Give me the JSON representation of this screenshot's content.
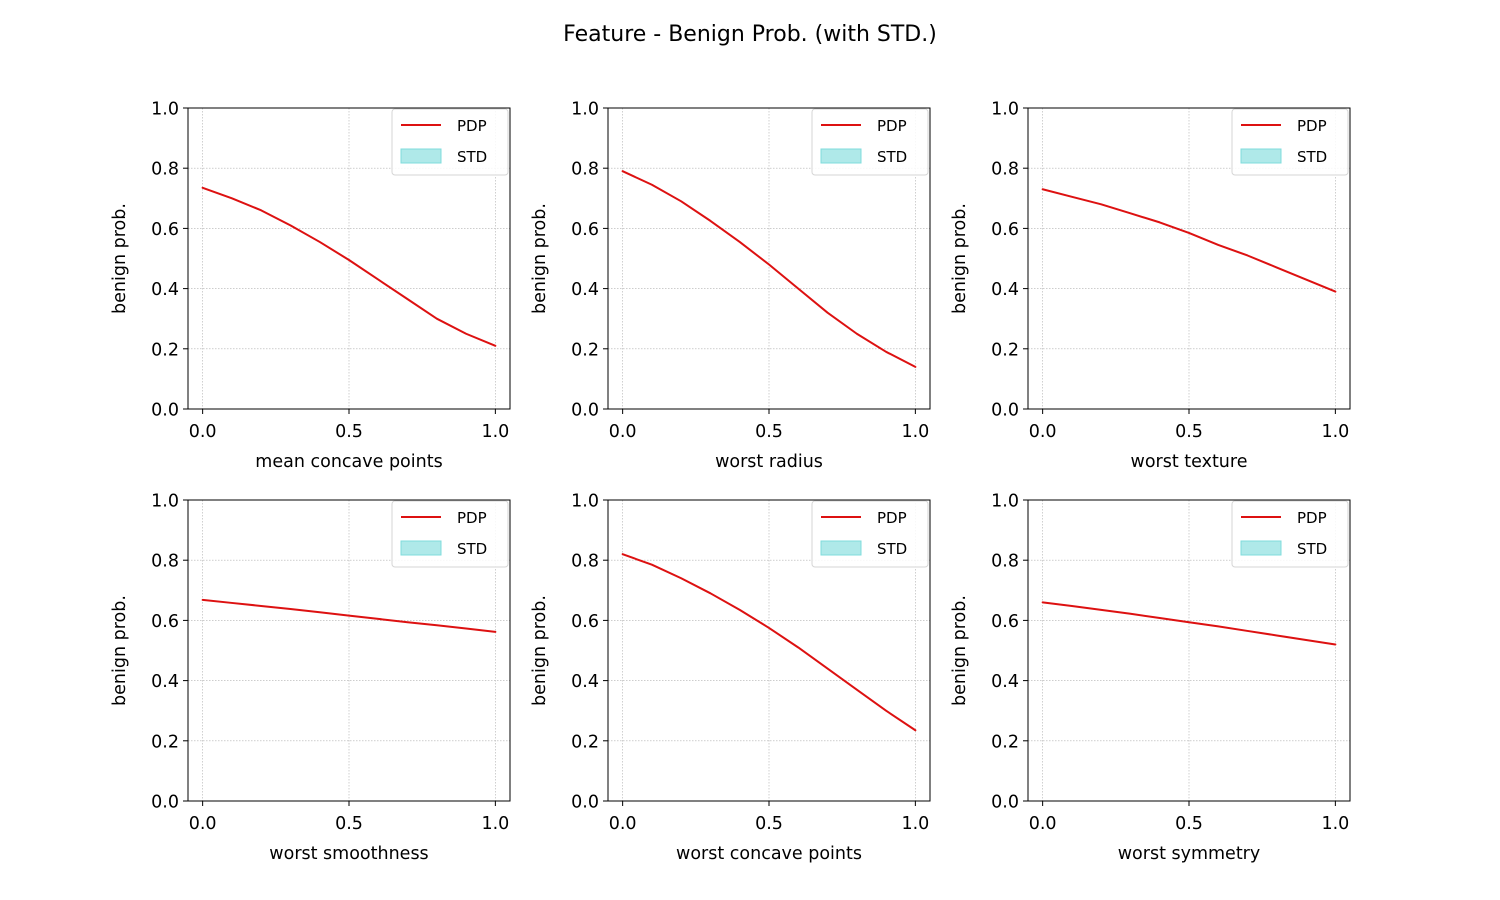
{
  "title": "Feature - Benign Prob. (with STD.)",
  "colors": {
    "pdp_line": "#dd1111",
    "std_fill": "#afe9e9",
    "std_edge": "#7fdcdc",
    "grid": "#b0b0b0",
    "axes": "#000000"
  },
  "chart_data": [
    {
      "type": "line",
      "xlabel": "mean concave points",
      "ylabel": "benign prob.",
      "xlim": [
        0.0,
        1.0
      ],
      "ylim": [
        0.0,
        1.0
      ],
      "xticks": [
        "0.0",
        "0.5",
        "1.0"
      ],
      "yticks": [
        "0.0",
        "0.2",
        "0.4",
        "0.6",
        "0.8",
        "1.0"
      ],
      "grid": true,
      "legend_position": "top-right",
      "legend": [
        "PDP",
        "STD"
      ],
      "x": [
        0.0,
        0.1,
        0.2,
        0.3,
        0.4,
        0.5,
        0.6,
        0.7,
        0.8,
        0.9,
        1.0
      ],
      "series": [
        {
          "name": "PDP",
          "values": [
            0.735,
            0.7,
            0.66,
            0.61,
            0.555,
            0.495,
            0.43,
            0.365,
            0.3,
            0.25,
            0.21
          ]
        }
      ]
    },
    {
      "type": "line",
      "xlabel": "worst radius",
      "ylabel": "benign prob.",
      "xlim": [
        0.0,
        1.0
      ],
      "ylim": [
        0.0,
        1.0
      ],
      "xticks": [
        "0.0",
        "0.5",
        "1.0"
      ],
      "yticks": [
        "0.0",
        "0.2",
        "0.4",
        "0.6",
        "0.8",
        "1.0"
      ],
      "grid": true,
      "legend_position": "top-right",
      "legend": [
        "PDP",
        "STD"
      ],
      "x": [
        0.0,
        0.1,
        0.2,
        0.3,
        0.4,
        0.5,
        0.6,
        0.7,
        0.8,
        0.9,
        1.0
      ],
      "series": [
        {
          "name": "PDP",
          "values": [
            0.79,
            0.745,
            0.69,
            0.625,
            0.555,
            0.48,
            0.4,
            0.32,
            0.25,
            0.19,
            0.14
          ]
        }
      ]
    },
    {
      "type": "line",
      "xlabel": "worst texture",
      "ylabel": "benign prob.",
      "xlim": [
        0.0,
        1.0
      ],
      "ylim": [
        0.0,
        1.0
      ],
      "xticks": [
        "0.0",
        "0.5",
        "1.0"
      ],
      "yticks": [
        "0.0",
        "0.2",
        "0.4",
        "0.6",
        "0.8",
        "1.0"
      ],
      "grid": true,
      "legend_position": "top-right",
      "legend": [
        "PDP",
        "STD"
      ],
      "x": [
        0.0,
        0.1,
        0.2,
        0.3,
        0.4,
        0.5,
        0.6,
        0.7,
        0.8,
        0.9,
        1.0
      ],
      "series": [
        {
          "name": "PDP",
          "values": [
            0.73,
            0.705,
            0.68,
            0.65,
            0.62,
            0.585,
            0.545,
            0.51,
            0.47,
            0.43,
            0.39
          ]
        }
      ]
    },
    {
      "type": "line",
      "xlabel": "worst smoothness",
      "ylabel": "benign prob.",
      "xlim": [
        0.0,
        1.0
      ],
      "ylim": [
        0.0,
        1.0
      ],
      "xticks": [
        "0.0",
        "0.5",
        "1.0"
      ],
      "yticks": [
        "0.0",
        "0.2",
        "0.4",
        "0.6",
        "0.8",
        "1.0"
      ],
      "grid": true,
      "legend_position": "top-right",
      "legend": [
        "PDP",
        "STD"
      ],
      "x": [
        0.0,
        0.1,
        0.2,
        0.3,
        0.4,
        0.5,
        0.6,
        0.7,
        0.8,
        0.9,
        1.0
      ],
      "series": [
        {
          "name": "PDP",
          "values": [
            0.668,
            0.658,
            0.648,
            0.638,
            0.627,
            0.616,
            0.605,
            0.594,
            0.584,
            0.573,
            0.562
          ]
        }
      ]
    },
    {
      "type": "line",
      "xlabel": "worst concave points",
      "ylabel": "benign prob.",
      "xlim": [
        0.0,
        1.0
      ],
      "ylim": [
        0.0,
        1.0
      ],
      "xticks": [
        "0.0",
        "0.5",
        "1.0"
      ],
      "yticks": [
        "0.0",
        "0.2",
        "0.4",
        "0.6",
        "0.8",
        "1.0"
      ],
      "grid": true,
      "legend_position": "top-right",
      "legend": [
        "PDP",
        "STD"
      ],
      "x": [
        0.0,
        0.1,
        0.2,
        0.3,
        0.4,
        0.5,
        0.6,
        0.7,
        0.8,
        0.9,
        1.0
      ],
      "series": [
        {
          "name": "PDP",
          "values": [
            0.82,
            0.785,
            0.74,
            0.69,
            0.635,
            0.575,
            0.51,
            0.44,
            0.37,
            0.3,
            0.235
          ]
        }
      ]
    },
    {
      "type": "line",
      "xlabel": "worst symmetry",
      "ylabel": "benign prob.",
      "xlim": [
        0.0,
        1.0
      ],
      "ylim": [
        0.0,
        1.0
      ],
      "xticks": [
        "0.0",
        "0.5",
        "1.0"
      ],
      "yticks": [
        "0.0",
        "0.2",
        "0.4",
        "0.6",
        "0.8",
        "1.0"
      ],
      "grid": true,
      "legend_position": "top-right",
      "legend": [
        "PDP",
        "STD"
      ],
      "x": [
        0.0,
        0.1,
        0.2,
        0.3,
        0.4,
        0.5,
        0.6,
        0.7,
        0.8,
        0.9,
        1.0
      ],
      "series": [
        {
          "name": "PDP",
          "values": [
            0.66,
            0.648,
            0.635,
            0.622,
            0.608,
            0.594,
            0.58,
            0.565,
            0.55,
            0.535,
            0.52
          ]
        }
      ]
    }
  ]
}
